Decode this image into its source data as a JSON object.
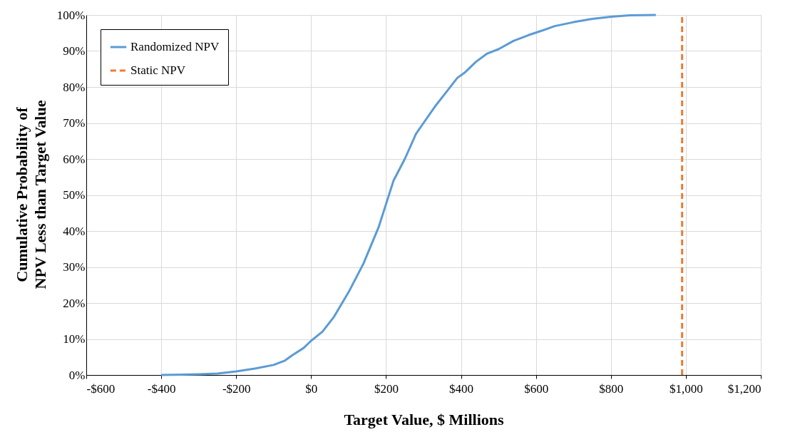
{
  "chart_data": {
    "type": "line",
    "xlabel": "Target Value, $ Millions",
    "ylabel": "Cumulative Probability of NPV Less than Target Value",
    "series": [
      {
        "name": "Randomized NPV",
        "color": "#5b9bd5",
        "line_style": "solid",
        "x": [
          -400,
          -300,
          -250,
          -200,
          -150,
          -100,
          -70,
          -50,
          -20,
          0,
          30,
          60,
          100,
          140,
          180,
          200,
          220,
          250,
          280,
          300,
          330,
          360,
          390,
          410,
          440,
          470,
          500,
          540,
          580,
          620,
          650,
          700,
          750,
          800,
          850,
          920
        ],
        "values": [
          0,
          0.2,
          0.4,
          1,
          1.8,
          2.8,
          4,
          5.5,
          7.5,
          9.5,
          12,
          16,
          23,
          31,
          41,
          47.5,
          54,
          60,
          67,
          70,
          74.5,
          78.5,
          82.5,
          84,
          87,
          89.3,
          90.5,
          92.8,
          94.4,
          95.8,
          96.9,
          98,
          98.9,
          99.5,
          99.9,
          100
        ]
      },
      {
        "name": "Static NPV",
        "color": "#ed7d31",
        "line_style": "dashed",
        "x": [
          990,
          990
        ],
        "values": [
          0,
          100
        ]
      }
    ],
    "xlim": [
      -600,
      1200
    ],
    "xticks": [
      {
        "value": -600,
        "label": "-$600"
      },
      {
        "value": -400,
        "label": "-$400"
      },
      {
        "value": -200,
        "label": "-$200"
      },
      {
        "value": 0,
        "label": "$0"
      },
      {
        "value": 200,
        "label": "$200"
      },
      {
        "value": 400,
        "label": "$400"
      },
      {
        "value": 600,
        "label": "$600"
      },
      {
        "value": 800,
        "label": "$800"
      },
      {
        "value": 1000,
        "label": "$1,000"
      },
      {
        "value": 1200,
        "label": "$1,200"
      }
    ],
    "ylim": [
      0,
      100
    ],
    "yticks": [
      {
        "value": 0,
        "label": "0%"
      },
      {
        "value": 10,
        "label": "10%"
      },
      {
        "value": 20,
        "label": "20%"
      },
      {
        "value": 30,
        "label": "30%"
      },
      {
        "value": 40,
        "label": "40%"
      },
      {
        "value": 50,
        "label": "50%"
      },
      {
        "value": 60,
        "label": "60%"
      },
      {
        "value": 70,
        "label": "70%"
      },
      {
        "value": 80,
        "label": "80%"
      },
      {
        "value": 90,
        "label": "90%"
      },
      {
        "value": 100,
        "label": "100%"
      }
    ],
    "grid": true,
    "legend": "top left"
  }
}
